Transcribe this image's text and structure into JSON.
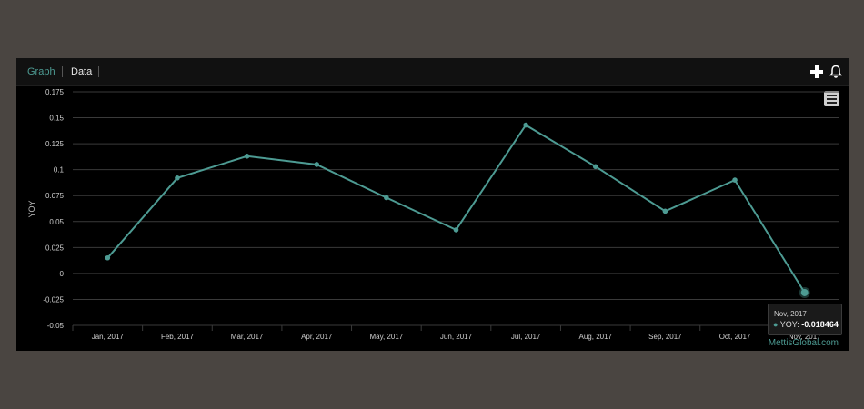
{
  "toolbar": {
    "tabs": [
      {
        "label": "Graph",
        "active": true
      },
      {
        "label": "Data",
        "active": false
      }
    ],
    "icons": [
      "plus-icon",
      "bell-icon"
    ],
    "menu_icon": "hamburger-menu-icon"
  },
  "colors": {
    "series": "#4d9b93",
    "background": "#000000",
    "grid": "#3a3a3a",
    "text": "#d0d0d0"
  },
  "chart_data": {
    "type": "line",
    "title": "",
    "xlabel": "",
    "ylabel": "YOY",
    "ylim": [
      -0.05,
      0.175
    ],
    "yticks": [
      0.175,
      0.15,
      0.125,
      0.1,
      0.075,
      0.05,
      0.025,
      0,
      -0.025,
      -0.05
    ],
    "ytick_labels": [
      "0.175",
      "0.15",
      "0.125",
      "0.1",
      "0.075",
      "0.05",
      "0.025",
      "0",
      "-0.025",
      "-0.05"
    ],
    "grid": true,
    "categories": [
      "Jan, 2017",
      "Feb, 2017",
      "Mar, 2017",
      "Apr, 2017",
      "May, 2017",
      "Jun, 2017",
      "Jul, 2017",
      "Aug, 2017",
      "Sep, 2017",
      "Oct, 2017",
      "Nov, 2017"
    ],
    "series": [
      {
        "name": "YOY",
        "values": [
          0.015,
          0.092,
          0.113,
          0.105,
          0.073,
          0.042,
          0.143,
          0.103,
          0.06,
          0.09,
          -0.018464
        ]
      }
    ],
    "tooltip": {
      "date": "Nov, 2017",
      "label": "YOY: ",
      "value": "-0.018464"
    }
  },
  "credit": "MettisGlobal.com"
}
